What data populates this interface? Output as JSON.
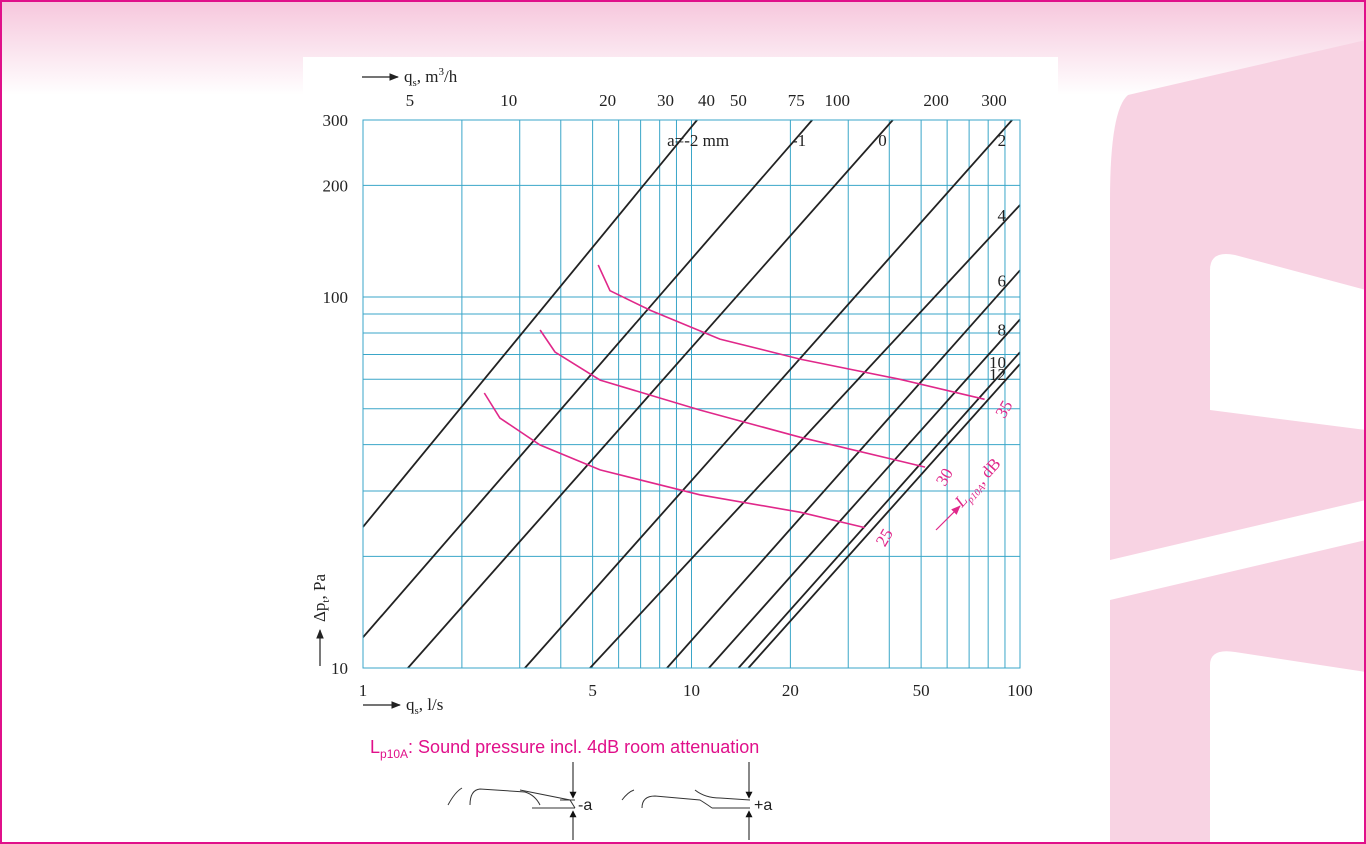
{
  "page": {
    "caption": {
      "symbol": "L",
      "subscript": "p10A",
      "text": ": Sound pressure incl. 4dB room attenuation"
    },
    "diagram": {
      "minus_label": "-a",
      "plus_label": "+a"
    }
  },
  "chart_data": {
    "type": "line",
    "xscale": "log",
    "yscale": "log",
    "x_label": {
      "symbol": "q",
      "subscript": "s",
      "unit": ", l/s"
    },
    "x2_label": {
      "symbol": "q",
      "subscript": "s",
      "unit": ", m",
      "superscript": "3",
      "unit_end": "/h"
    },
    "y_label": {
      "symbol": "Δp",
      "subscript": "t",
      "unit": ", Pa"
    },
    "xlim": [
      1,
      100
    ],
    "xticks": [
      1,
      5,
      10,
      20,
      50,
      100
    ],
    "x_minor_grid": [
      2,
      3,
      4,
      6,
      7,
      8,
      9,
      30,
      40,
      60,
      70,
      80,
      90
    ],
    "x2lim": [
      3.6,
      360
    ],
    "x2ticks": [
      5,
      10,
      20,
      30,
      40,
      50,
      75,
      100,
      200,
      300
    ],
    "ylim": [
      10,
      300
    ],
    "yticks": [
      10,
      100,
      200,
      300
    ],
    "y_minor_grid": [
      20,
      30,
      40,
      50,
      60,
      70,
      80,
      90
    ],
    "grid": true,
    "grid_color": "#3aa6c8",
    "series": [
      {
        "name": "a=-2 mm",
        "color": "#222222",
        "x": [
          1,
          10.4
        ],
        "values": [
          24,
          300
        ]
      },
      {
        "name": "-1",
        "color": "#222222",
        "x": [
          1,
          23.3
        ],
        "values": [
          12.1,
          300
        ]
      },
      {
        "name": "0",
        "color": "#222222",
        "x": [
          1.37,
          41
        ],
        "values": [
          10,
          300
        ]
      },
      {
        "name": "2",
        "color": "#222222",
        "x": [
          3.11,
          94.6
        ],
        "values": [
          10,
          300
        ]
      },
      {
        "name": "4",
        "color": "#222222",
        "x": [
          4.91,
          100
        ],
        "values": [
          10,
          177
        ]
      },
      {
        "name": "6",
        "color": "#222222",
        "x": [
          8.42,
          100
        ],
        "values": [
          10,
          118
        ]
      },
      {
        "name": "8",
        "color": "#222222",
        "x": [
          11.3,
          100
        ],
        "values": [
          10,
          87
        ]
      },
      {
        "name": "10",
        "color": "#222222",
        "x": [
          13.9,
          100
        ],
        "values": [
          10,
          71
        ]
      },
      {
        "name": "12",
        "color": "#222222",
        "x": [
          14.9,
          100
        ],
        "values": [
          10,
          66
        ]
      }
    ],
    "sound_label": {
      "symbol": "L",
      "subscript": "p10A",
      "unit": ", dB"
    },
    "sound_series": [
      {
        "name": "25",
        "color": "#e0288a",
        "x": [
          2.34,
          2.61,
          3.46,
          5.27,
          10.6,
          21.4,
          33.7
        ],
        "values": [
          55.1,
          47.2,
          39.9,
          34.2,
          29.3,
          26.3,
          23.9
        ]
      },
      {
        "name": "30",
        "color": "#e0288a",
        "x": [
          3.46,
          3.84,
          5.27,
          10.6,
          21.4,
          51.4
        ],
        "values": [
          81.5,
          71.1,
          59.7,
          49.6,
          41.9,
          34.8
        ]
      },
      {
        "name": "35",
        "color": "#e0288a",
        "x": [
          5.2,
          5.65,
          7.5,
          12.2,
          21.4,
          43.1,
          78
        ],
        "values": [
          122,
          104,
          92,
          77,
          68,
          60,
          53
        ]
      }
    ]
  }
}
